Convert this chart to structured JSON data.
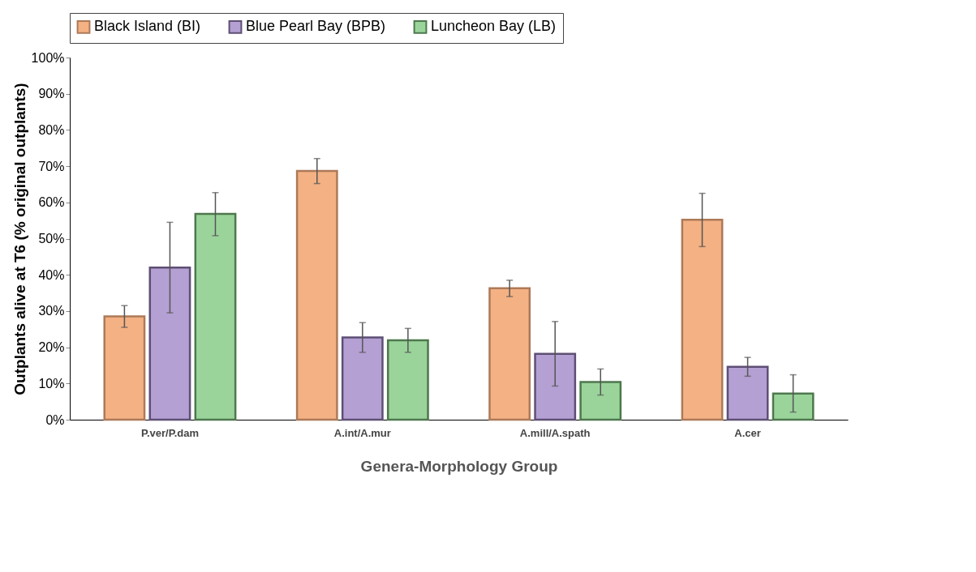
{
  "chart_data": {
    "type": "bar",
    "xlabel": "Genera-Morphology Group",
    "ylabel": "Outplants alive at T6 (% original outplants)",
    "categories": [
      "P.ver/P.dam",
      "A.int/A.mur",
      "A.mill/A.spath",
      "A.cer"
    ],
    "series": [
      {
        "name": "Black Island (BI)",
        "color": "#f4b183",
        "values": [
          28.5,
          68.7,
          36.3,
          55.2
        ],
        "errors": [
          [
            25.5,
            31.5
          ],
          [
            65.2,
            72.1
          ],
          [
            34.0,
            38.5
          ],
          [
            47.8,
            62.5
          ]
        ]
      },
      {
        "name": "Blue Pearl Bay (BPB)",
        "color": "#b4a0d2",
        "values": [
          42.0,
          22.7,
          18.2,
          14.6
        ],
        "errors": [
          [
            29.5,
            54.5
          ],
          [
            18.6,
            26.8
          ],
          [
            9.3,
            27.1
          ],
          [
            12.0,
            17.2
          ]
        ]
      },
      {
        "name": "Luncheon Bay (LB)",
        "color": "#9bd49b",
        "values": [
          56.8,
          21.9,
          10.4,
          7.2
        ],
        "errors": [
          [
            50.8,
            62.7
          ],
          [
            18.6,
            25.2
          ],
          [
            6.8,
            14.0
          ],
          [
            2.1,
            12.4
          ]
        ]
      }
    ],
    "ylim": [
      0,
      100
    ],
    "yticks": [
      {
        "value": 0,
        "label": "0%"
      },
      {
        "value": 10,
        "label": "10%"
      },
      {
        "value": 20,
        "label": "20%"
      },
      {
        "value": 30,
        "label": "30%"
      },
      {
        "value": 40,
        "label": "40%"
      },
      {
        "value": 50,
        "label": "50%"
      },
      {
        "value": 60,
        "label": "60%"
      },
      {
        "value": 70,
        "label": "70%"
      },
      {
        "value": 80,
        "label": "80%"
      },
      {
        "value": 90,
        "label": "90%"
      },
      {
        "value": 100,
        "label": "100%"
      }
    ],
    "legend": "top"
  }
}
